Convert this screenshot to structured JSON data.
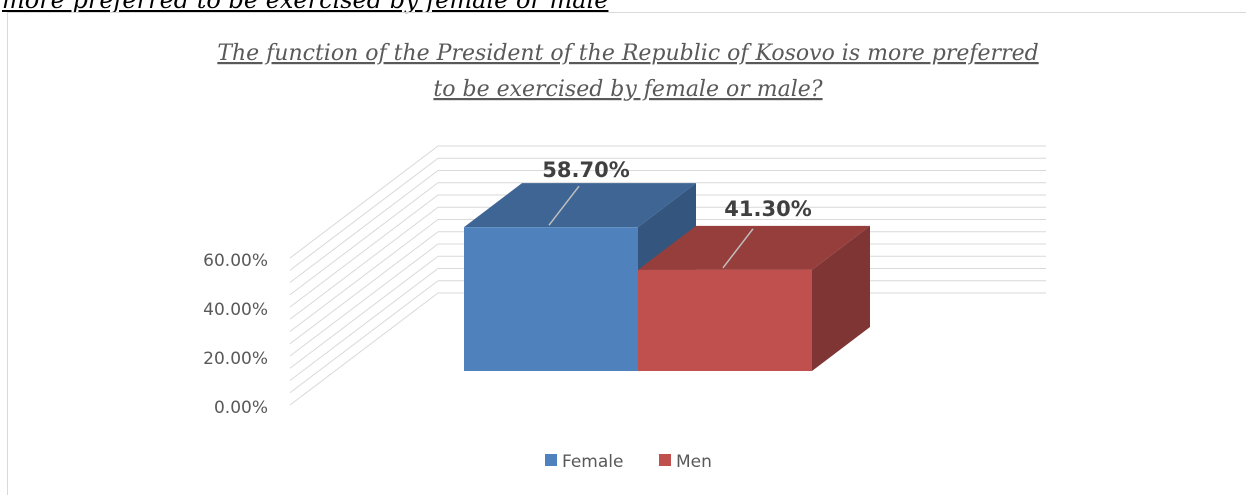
{
  "caption": "more preferred to be exercised by female or male",
  "chart_data": {
    "type": "bar",
    "title_lines": [
      "The function of the President of the Republic of Kosovo is more preferred",
      "to be exercised by female or male?"
    ],
    "categories": [
      "Female",
      "Men"
    ],
    "values": [
      58.7,
      41.3
    ],
    "data_labels": [
      "58.70%",
      "41.30%"
    ],
    "colors": [
      "#4f81bd",
      "#c0504d"
    ],
    "y_ticks": [
      "0.00%",
      "20.00%",
      "40.00%",
      "60.00%"
    ],
    "ylim": [
      0,
      60
    ],
    "grid": true,
    "legend_position": "bottom"
  }
}
